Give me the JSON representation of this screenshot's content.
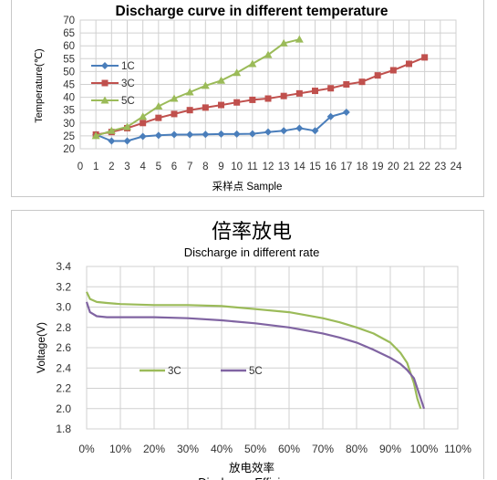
{
  "chart_data": [
    {
      "type": "line",
      "title": "Discharge curve in different temperature",
      "xlabel": "采样点  Sample",
      "ylabel": "Temperature(℃)",
      "xlim": [
        0,
        24
      ],
      "ylim": [
        20,
        70
      ],
      "x_ticks": [
        "0",
        "1",
        "2",
        "3",
        "4",
        "5",
        "6",
        "7",
        "8",
        "9",
        "10",
        "11",
        "12",
        "13",
        "14",
        "15",
        "16",
        "17",
        "18",
        "19",
        "20",
        "21",
        "22",
        "23",
        "24"
      ],
      "y_ticks": [
        "20",
        "25",
        "30",
        "35",
        "40",
        "45",
        "50",
        "55",
        "60",
        "65",
        "70"
      ],
      "grid": true,
      "legend_position": "left",
      "series": [
        {
          "name": "1C",
          "color": "#4a7ebb",
          "marker": "diamond",
          "x": [
            1,
            2,
            3,
            4,
            5,
            6,
            7,
            8,
            9,
            10,
            11,
            12,
            13,
            14,
            15,
            16,
            17
          ],
          "y": [
            25.5,
            23,
            23,
            24.8,
            25.2,
            25.5,
            25.5,
            25.6,
            25.7,
            25.7,
            25.8,
            26.5,
            27,
            28,
            27,
            32.5,
            34.2
          ]
        },
        {
          "name": "3C",
          "color": "#c0504d",
          "marker": "square",
          "x": [
            1,
            2,
            3,
            4,
            5,
            6,
            7,
            8,
            9,
            10,
            11,
            12,
            13,
            14,
            15,
            16,
            17,
            18,
            19,
            20,
            21,
            22
          ],
          "y": [
            25.5,
            26.5,
            28,
            30,
            32,
            33.5,
            35,
            36,
            37,
            38,
            39,
            39.5,
            40.5,
            41.5,
            42.5,
            43.5,
            45,
            46,
            48.5,
            50.5,
            53,
            55.5
          ]
        },
        {
          "name": "5C",
          "color": "#9bbb59",
          "marker": "triangle",
          "x": [
            1,
            2,
            3,
            4,
            5,
            6,
            7,
            8,
            9,
            10,
            11,
            12,
            13,
            14
          ],
          "y": [
            25,
            27,
            28.5,
            32.5,
            36.5,
            39.5,
            42,
            44.5,
            46.5,
            49.5,
            53,
            56.5,
            61,
            62.5
          ]
        }
      ]
    },
    {
      "type": "line",
      "title": "倍率放电",
      "subtitle": "Discharge in different rate",
      "xlabel": "放电效率",
      "xlabel_en": "Discharge Efficiency",
      "ylabel": "Voltage(V)",
      "xlim": [
        0,
        110
      ],
      "ylim": [
        1.8,
        3.4
      ],
      "x_ticks": [
        "0%",
        "10%",
        "20%",
        "30%",
        "40%",
        "50%",
        "60%",
        "70%",
        "80%",
        "90%",
        "100%",
        "110%"
      ],
      "y_ticks": [
        "1.8",
        "2.0",
        "2.2",
        "2.4",
        "2.6",
        "2.8",
        "3.0",
        "3.2",
        "3.4"
      ],
      "grid": true,
      "legend_position": "lower-left",
      "series": [
        {
          "name": "3C",
          "color": "#9bbb59",
          "x": [
            0,
            1,
            3,
            6,
            10,
            20,
            30,
            40,
            50,
            60,
            70,
            75,
            80,
            85,
            90,
            93,
            95,
            96,
            97,
            98,
            99
          ],
          "y": [
            3.15,
            3.08,
            3.05,
            3.04,
            3.03,
            3.02,
            3.02,
            3.01,
            2.98,
            2.95,
            2.89,
            2.85,
            2.8,
            2.74,
            2.65,
            2.55,
            2.45,
            2.35,
            2.25,
            2.1,
            2.0
          ]
        },
        {
          "name": "5C",
          "color": "#8064a2",
          "x": [
            0,
            1,
            3,
            6,
            10,
            20,
            30,
            40,
            50,
            60,
            70,
            75,
            80,
            85,
            90,
            93,
            95,
            97,
            98,
            99,
            100
          ],
          "y": [
            3.05,
            2.95,
            2.91,
            2.9,
            2.9,
            2.9,
            2.89,
            2.87,
            2.84,
            2.8,
            2.74,
            2.7,
            2.65,
            2.58,
            2.5,
            2.44,
            2.38,
            2.3,
            2.2,
            2.1,
            2.0
          ]
        }
      ]
    }
  ]
}
